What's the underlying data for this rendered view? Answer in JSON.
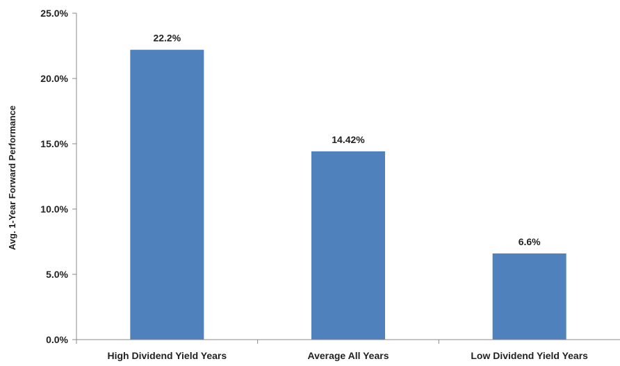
{
  "chart_data": {
    "type": "bar",
    "categories": [
      "High Dividend Yield Years",
      "Average All Years",
      "Low Dividend Yield Years"
    ],
    "values": [
      22.2,
      14.42,
      6.6
    ],
    "data_labels": [
      "22.2%",
      "14.42%",
      "6.6%"
    ],
    "title": "",
    "xlabel": "",
    "ylabel": "Avg. 1-Year Forward Performance",
    "ylim": [
      0,
      25
    ],
    "yticks": [
      0,
      5,
      10,
      15,
      20,
      25
    ],
    "ytick_labels": [
      "0.0%",
      "5.0%",
      "10.0%",
      "15.0%",
      "20.0%",
      "25.0%"
    ],
    "grid": false,
    "legend": "none",
    "bar_color": "#4F81BD"
  }
}
